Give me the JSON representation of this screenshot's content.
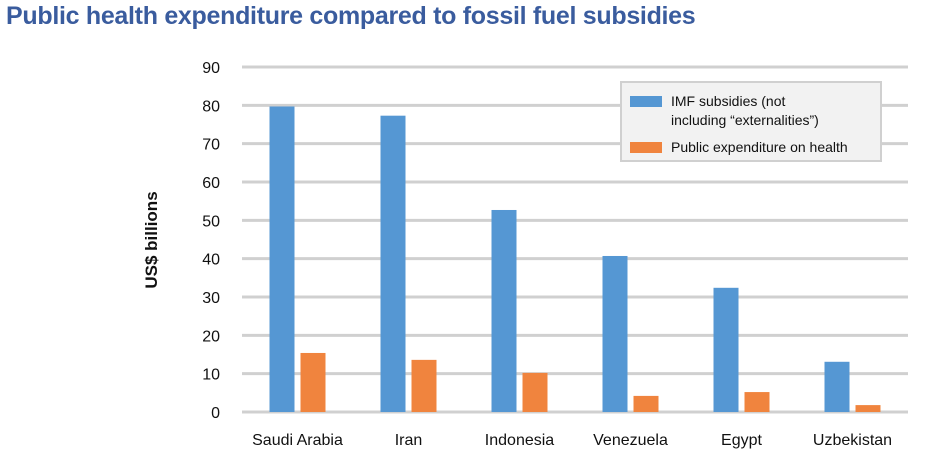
{
  "title": "Public health expenditure compared to fossil fuel subsidies",
  "colors": {
    "title": "#3a5c9e",
    "imf": "#5597d3",
    "health": "#f0843e",
    "grid": "#d0d0d0"
  },
  "legend": {
    "imf_label_line1": "IMF subsidies (not",
    "imf_label_line2": "including “externalities”)",
    "health_label": "Public expenditure on health"
  },
  "chart_data": {
    "type": "bar",
    "title": "Public health expenditure compared to fossil fuel subsidies",
    "xlabel": "",
    "ylabel": "US$ billions",
    "ylim": [
      0,
      90
    ],
    "yticks": [
      0,
      10,
      20,
      30,
      40,
      50,
      60,
      70,
      80,
      90
    ],
    "grid": true,
    "legend_position": "top-right",
    "categories": [
      "Saudi Arabia",
      "Iran",
      "Indonesia",
      "Venezuela",
      "Egypt",
      "Uzbekistan"
    ],
    "series": [
      {
        "name": "IMF subsidies (not including “externalities”)",
        "color": "#5597d3",
        "values": [
          79.7,
          77.3,
          52.7,
          40.7,
          32.4,
          13.1
        ]
      },
      {
        "name": "Public expenditure on health",
        "color": "#f0843e",
        "values": [
          15.4,
          13.6,
          10.2,
          4.2,
          5.2,
          1.8
        ]
      }
    ]
  }
}
